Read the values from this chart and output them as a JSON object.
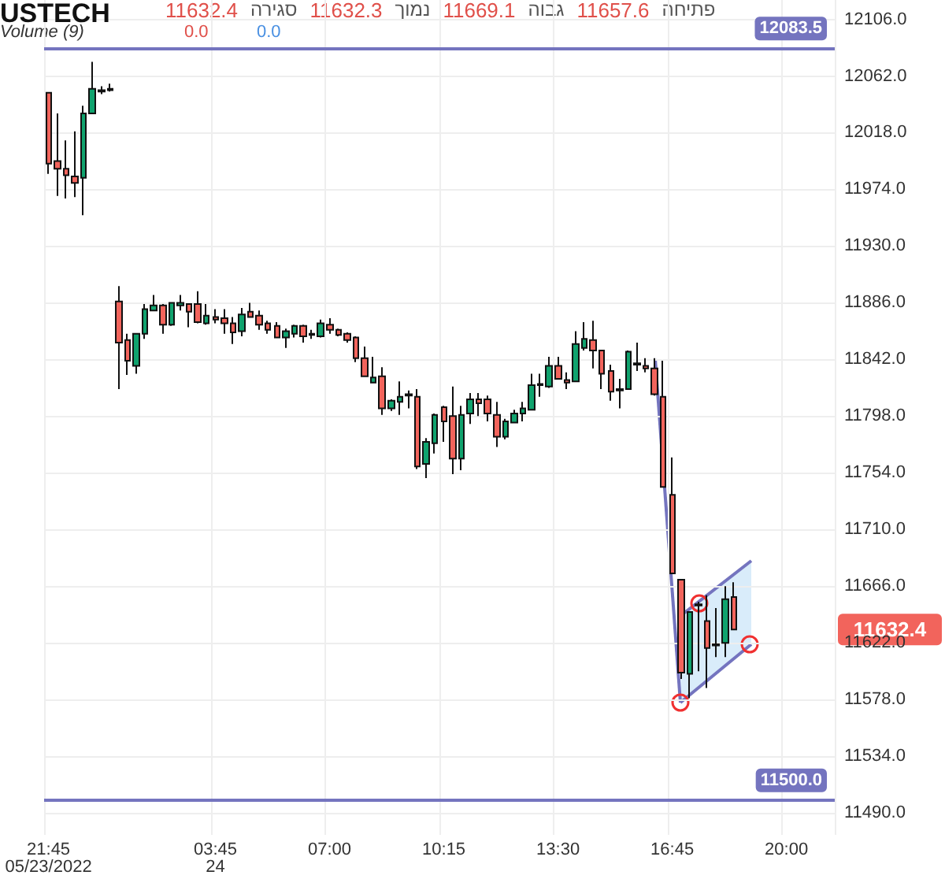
{
  "chart_data": {
    "type": "candlestick",
    "title": "USTECH",
    "categories": [
      "21:45\n05/23/2022",
      null,
      null,
      null,
      null,
      null,
      null,
      null,
      null,
      null,
      null,
      null,
      null,
      null,
      null,
      null,
      null,
      null,
      null,
      "03:45\n24",
      null,
      null,
      null,
      null,
      null,
      null,
      null,
      null,
      null,
      null,
      null,
      null,
      "07:00",
      null,
      null,
      null,
      null,
      null,
      null,
      null,
      null,
      null,
      null,
      null,
      null,
      "10:15",
      null,
      null,
      null,
      null,
      null,
      null,
      null,
      null,
      null,
      null,
      null,
      null,
      "13:30",
      null,
      null,
      null,
      null,
      null,
      null,
      null,
      null,
      null,
      null,
      null,
      null,
      "16:45",
      null,
      null,
      null,
      null,
      null,
      null,
      null,
      null,
      null,
      null,
      null,
      null,
      "20:00",
      null,
      null,
      null,
      null,
      null
    ],
    "colors": [
      "#f2645c",
      "#f2645c",
      "#f2645c",
      "#f2645c",
      "#10a36e",
      "#10a36e",
      "#10a36e",
      "#10a36e",
      "#f2645c",
      "#f2645c",
      "#10a36e",
      "#10a36e",
      "#10a36e",
      "#f2645c",
      "#10a36e",
      "#10a36e",
      "#f2645c",
      "#f2645c",
      "#10a36e",
      "#f2645c",
      "#f2645c",
      "#f2645c",
      "#10a36e",
      "#f2645c",
      "#f2645c",
      "#f2645c",
      "#f2645c",
      "#10a36e",
      "#10a36e",
      "#f2645c",
      "#10a36e",
      "#10a36e",
      "#f2645c",
      "#f2645c",
      "#f2645c",
      "#f2645c",
      "#f2645c",
      "#10a36e",
      "#f2645c",
      "#10a36e",
      "#10a36e",
      "#10a36e",
      "#f2645c",
      "#10a36e",
      "#10a36e",
      "#f2645c",
      "#f2645c",
      "#10a36e",
      "#10a36e",
      "#f2645c",
      "#f2645c",
      "#f2645c",
      "#10a36e",
      "#10a36e",
      "#10a36e",
      "#10a36e",
      "#10a36e",
      "#10a36e",
      "#f2645c",
      "#f2645c",
      "#10a36e",
      "#10a36e",
      "#f2645c",
      "#f2645c",
      "#f2645c",
      "#10a36e",
      "#10a36e",
      "#10a36e",
      "#f2645c",
      "#f2645c",
      "#f2645c",
      "#f2645c",
      "#f2645c",
      "#10a36e",
      "#10a36e",
      "#f2645c",
      "#10a36e",
      "#10a36e",
      "#f2645c",
      null,
      null,
      null,
      null,
      null,
      null,
      null,
      null,
      null,
      null,
      null
    ],
    "ohlc": [
      [
        12049,
        12049,
        11986,
        11994
      ],
      [
        11996,
        12033,
        11969,
        11990
      ],
      [
        11990,
        12012,
        11967,
        11985
      ],
      [
        11984,
        12019,
        11968,
        11979
      ],
      [
        11983,
        12039,
        11954,
        12033
      ],
      [
        12033,
        12073,
        12033,
        12052
      ],
      [
        12050,
        12054,
        12048,
        12051
      ],
      [
        12051,
        12056,
        12050,
        12052
      ],
      [
        11887,
        11899,
        11819,
        11855
      ],
      [
        11857,
        11862,
        11830,
        11841
      ],
      [
        11837,
        11862,
        11831,
        11862
      ],
      [
        11862,
        11885,
        11858,
        11881
      ],
      [
        11880,
        11892,
        11880,
        11884
      ],
      [
        11884,
        11885,
        11862,
        11869
      ],
      [
        11869,
        11886,
        11868,
        11886
      ],
      [
        11884,
        11892,
        11880,
        11886
      ],
      [
        11885,
        11885,
        11867,
        11879
      ],
      [
        11885,
        11895,
        11870,
        11871
      ],
      [
        11870,
        11885,
        11869,
        11876
      ],
      [
        11875,
        11881,
        11870,
        11873
      ],
      [
        11874,
        11881,
        11862,
        11870
      ],
      [
        11870,
        11875,
        11854,
        11863
      ],
      [
        11864,
        11882,
        11860,
        11877
      ],
      [
        11879,
        11886,
        11875,
        11875
      ],
      [
        11876,
        11880,
        11865,
        11869
      ],
      [
        11870,
        11872,
        11862,
        11865
      ],
      [
        11868,
        11871,
        11859,
        11859
      ],
      [
        11859,
        11866,
        11851,
        11864
      ],
      [
        11862,
        11869,
        11859,
        11868
      ],
      [
        11868,
        11869,
        11855,
        11860
      ],
      [
        11861,
        11865,
        11858,
        11862
      ],
      [
        11860,
        11873,
        11859,
        11870
      ],
      [
        11869,
        11874,
        11862,
        11865
      ],
      [
        11865,
        11866,
        11860,
        11861
      ],
      [
        11862,
        11863,
        11855,
        11857
      ],
      [
        11859,
        11860,
        11840,
        11843
      ],
      [
        11843,
        11852,
        11829,
        11829
      ],
      [
        11824,
        11844,
        11824,
        11828
      ],
      [
        11829,
        11836,
        11799,
        11804
      ],
      [
        11804,
        11811,
        11802,
        11810
      ],
      [
        11809,
        11825,
        11799,
        11813
      ],
      [
        11814,
        11818,
        11804,
        11815
      ],
      [
        11813,
        11819,
        11757,
        11759
      ],
      [
        11761,
        11781,
        11750,
        11778
      ],
      [
        11777,
        11800,
        11769,
        11799
      ],
      [
        11805,
        11806,
        11778,
        11794
      ],
      [
        11798,
        11821,
        11753,
        11765
      ],
      [
        11765,
        11806,
        11756,
        11799
      ],
      [
        11800,
        11816,
        11792,
        11811
      ],
      [
        11811,
        11816,
        11798,
        11808
      ],
      [
        11811,
        11814,
        11794,
        11800
      ],
      [
        11799,
        11809,
        11774,
        11782
      ],
      [
        11782,
        11796,
        11780,
        11794
      ],
      [
        11793,
        11803,
        11793,
        11800
      ],
      [
        11800,
        11809,
        11794,
        11804
      ],
      [
        11803,
        11831,
        11803,
        11822
      ],
      [
        11822,
        11831,
        11813,
        11823
      ],
      [
        11821,
        11844,
        11820,
        11837
      ],
      [
        11837,
        11844,
        11827,
        11827
      ],
      [
        11826,
        11832,
        11819,
        11824
      ],
      [
        11825,
        11864,
        11825,
        11854
      ],
      [
        11851,
        11871,
        11849,
        11858
      ],
      [
        11857,
        11872,
        11835,
        11849
      ],
      [
        11849,
        11849,
        11819,
        11831
      ],
      [
        11833,
        11838,
        11810,
        11817
      ],
      [
        11818,
        11827,
        11804,
        11819
      ],
      [
        11819,
        11849,
        11819,
        11848
      ],
      [
        11838,
        11855,
        11833,
        11839
      ],
      [
        11837,
        11843,
        11832,
        11835
      ],
      [
        11835,
        11843,
        11814,
        11815
      ],
      [
        11813,
        11841,
        11743,
        11743
      ],
      [
        11737,
        11766,
        11676,
        11676
      ],
      [
        11671,
        11671,
        11594,
        11599
      ],
      [
        11598,
        11646,
        11579,
        11646
      ],
      [
        11651,
        11654,
        11600,
        11652
      ],
      [
        11639,
        11659,
        11587,
        11618
      ],
      [
        11620,
        11649,
        11611,
        11621
      ],
      [
        11622,
        11666,
        11611,
        11656
      ],
      [
        11657.6,
        11669.1,
        11632.3,
        11632.4
      ],
      null,
      null,
      null,
      null,
      null,
      null,
      null,
      null,
      null,
      null,
      null
    ],
    "ylim": [
      11473,
      12121
    ],
    "yticks": [
      {
        "value": 11490,
        "label": "11490.0"
      },
      {
        "value": 11534,
        "label": "11534.0"
      },
      {
        "value": 11578,
        "label": "11578.0"
      },
      {
        "value": 11622,
        "label": "11622.0"
      },
      {
        "value": 11666,
        "label": "11666.0"
      },
      {
        "value": 11710,
        "label": "11710.0"
      },
      {
        "value": 11754,
        "label": "11754.0"
      },
      {
        "value": 11798,
        "label": "11798.0"
      },
      {
        "value": 11842,
        "label": "11842.0"
      },
      {
        "value": 11886,
        "label": "11886.0"
      },
      {
        "value": 11930,
        "label": "11930.0"
      },
      {
        "value": 11974,
        "label": "11974.0"
      },
      {
        "value": 12018,
        "label": "12018.0"
      },
      {
        "value": 12062,
        "label": "12062.0"
      },
      {
        "value": 12106,
        "label": "12106.0"
      }
    ],
    "grid": true,
    "ref_lines": [
      {
        "axis": "y",
        "value": 12083.5,
        "label": "12083.5",
        "color": "#7474bf"
      },
      {
        "axis": "y",
        "value": 11500,
        "label": "11500.0",
        "color": "#7474bf"
      }
    ],
    "annotations": [
      "11632.4",
      "סגירה",
      "11632.3",
      "נמוך",
      "11669.1",
      "גבוה",
      "11657.6",
      "פתיחה",
      "Volume (9)",
      "0.0",
      "0.0",
      "11632.4"
    ]
  }
}
